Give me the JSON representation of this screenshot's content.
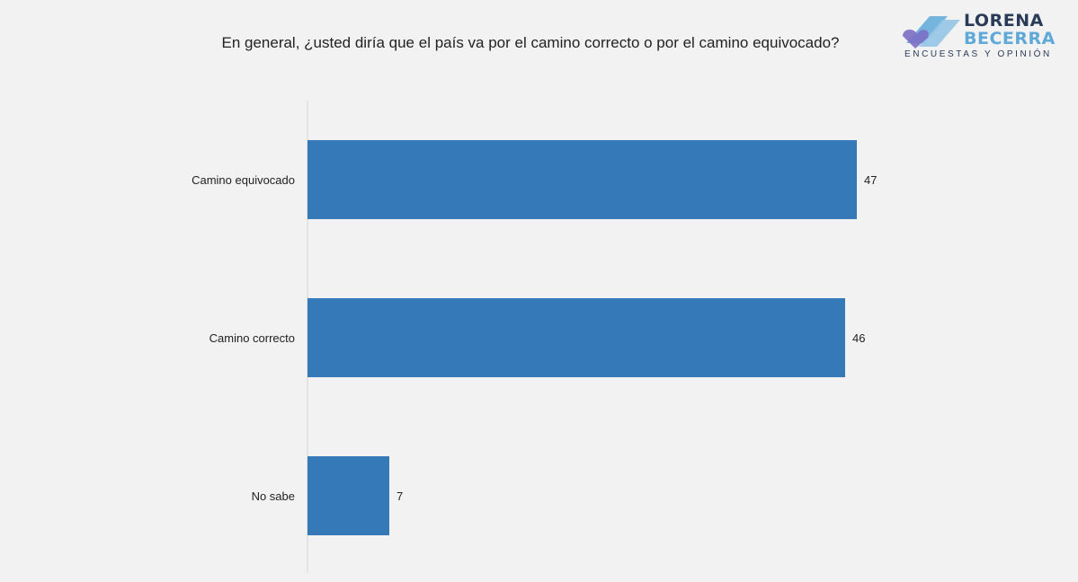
{
  "title": "En general, ¿usted diría que el país va por el camino correcto o por el camino equivocado?",
  "logo": {
    "line1": "LORENA",
    "line2": "BECERRA",
    "tagline": "ENCUESTAS Y OPINIÓN",
    "colors": {
      "dark": "#2a3b58",
      "light": "#5fa9d8",
      "accent": "#7c6fc4"
    }
  },
  "chart_data": {
    "type": "bar",
    "orientation": "horizontal",
    "categories": [
      "Camino equivocado",
      "Camino correcto",
      "No sabe"
    ],
    "values": [
      47,
      46,
      7
    ],
    "value_labels": [
      "47",
      "46",
      "7"
    ],
    "xlim": [
      0,
      50
    ],
    "grid": false,
    "legend": "none",
    "bar_color": "#3579b8"
  }
}
